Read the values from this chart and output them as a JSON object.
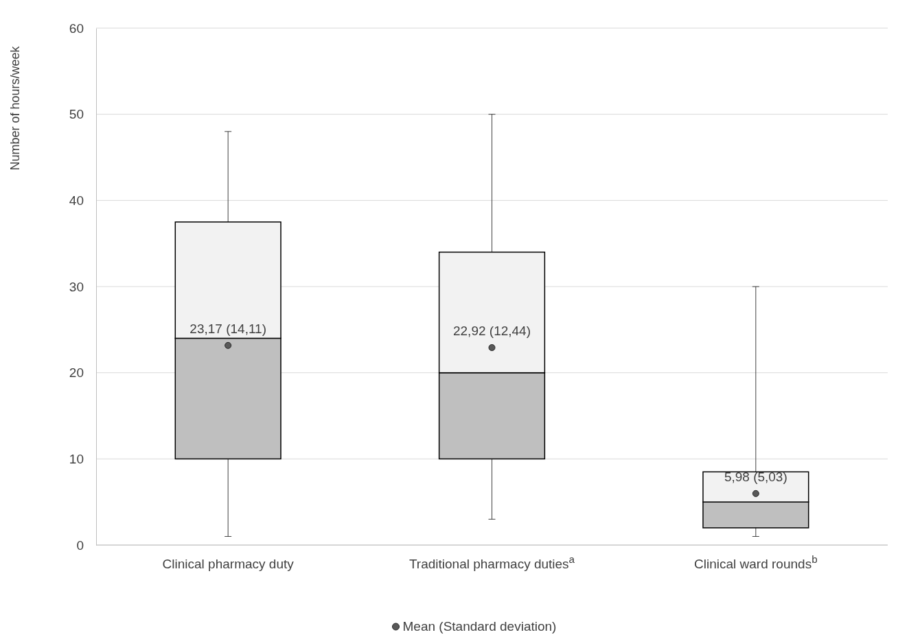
{
  "chart_data": {
    "type": "box",
    "categories": [
      "Clinical pharmacy duty",
      "Traditional pharmacy duties$^{a}$",
      "Clinical ward rounds$^{b}$"
    ],
    "ylabel": "Number of hours/week",
    "ylim": [
      0,
      60
    ],
    "yticks": [
      0,
      10,
      20,
      30,
      40,
      50,
      60
    ],
    "grid": "y",
    "legend": "bottom",
    "series": [
      {
        "color": "#f2f2f2",
        "colors": [
          "#bfbfbf",
          "#bfbfbf",
          "#bfbfbf"
        ],
        "boxes": [
          {
            "low": 1,
            "q1": 10,
            "median": 24,
            "q3": 37.5,
            "high": 48
          },
          {
            "low": 3,
            "q1": 10,
            "median": 20,
            "q3": 34,
            "high": 50
          },
          {
            "low": 1,
            "q1": 2,
            "median": 5,
            "q3": 8.5,
            "high": 30
          }
        ]
      },
      {
        "type": "scatter",
        "name": "Mean (Standard deviation)",
        "color": "#595959",
        "marker": "circle",
        "values": [
          23.17,
          22.92,
          5.98
        ],
        "value_labels": [
          "23,17 (14,11)",
          "22,92 (12,44)",
          "5,98 (5,03)"
        ]
      }
    ]
  }
}
